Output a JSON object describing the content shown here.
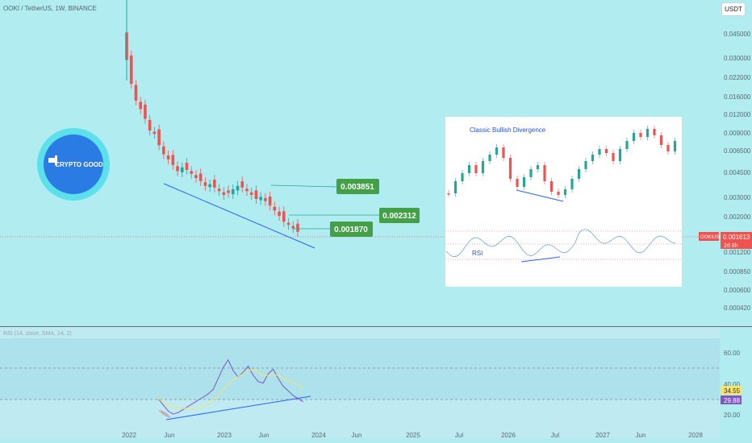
{
  "header": {
    "symbol_title": "OOKI / TetherUS, 1W, BINANCE",
    "currency_button": "USDT"
  },
  "logo": {
    "text": "CRYPTO GOOD"
  },
  "price_axis": {
    "labels": [
      "0.045000",
      "0.030000",
      "0.022000",
      "0.016000",
      "0.012000",
      "0.009000",
      "0.006500",
      "0.004500",
      "0.003000",
      "0.002000",
      "0.001200",
      "0.000850",
      "0.000600",
      "0.000420"
    ],
    "last_price_tag": {
      "symbol": "OOKIUSDT",
      "value": "0.001613",
      "countdown": "2d 8h",
      "color": "#ef5350"
    }
  },
  "time_axis": {
    "labels": [
      "2022",
      "Jun",
      "2023",
      "Jun",
      "2024",
      "Jun",
      "2025",
      "Jul",
      "2026",
      "Jul",
      "2027",
      "Jun",
      "2028"
    ]
  },
  "annotations": {
    "targets": [
      {
        "label": "0.003851",
        "color": "#43a047"
      },
      {
        "label": "0.002312",
        "color": "#43a047"
      },
      {
        "label": "0.001870",
        "color": "#43a047"
      }
    ]
  },
  "inset": {
    "title": "Classic Bullish Divergence",
    "rsi_label": "RSI"
  },
  "rsi_pane": {
    "title": "RSI (14, close, SMA, 14, 2)",
    "axis_labels": [
      "60.00",
      "40.00",
      "20.00"
    ],
    "sma_value": {
      "text": "34.55",
      "color": "#f5e66a"
    },
    "rsi_value": {
      "text": "29.88",
      "color": "#7e57c2"
    }
  },
  "colors": {
    "background": "#b0ecf0",
    "candle_up": "#26a69a",
    "candle_down": "#ef5350",
    "trendline": "#2962ff",
    "rsi_line": "#7e57c2",
    "rsi_sma": "#f5e66a"
  },
  "chart_data": {
    "type": "candlestick",
    "symbol": "OOKIUSDT",
    "interval": "1W",
    "scale": "log",
    "series": [
      {
        "name": "OOKIUSDT",
        "values": [
          0.03,
          0.02,
          0.015,
          0.013,
          0.011,
          0.009,
          0.0085,
          0.007,
          0.006,
          0.0055,
          0.005,
          0.0045,
          0.0048,
          0.0046,
          0.0043,
          0.004,
          0.0038,
          0.0035,
          0.0036,
          0.0034,
          0.0032,
          0.003,
          0.0031,
          0.0033,
          0.0035,
          0.0034,
          0.0032,
          0.003,
          0.0028,
          0.0029,
          0.0027,
          0.0025,
          0.0023,
          0.0021,
          0.0019,
          0.0018,
          0.0017,
          0.0016
        ]
      }
    ],
    "rsi_series": [
      32,
      28,
      24,
      22,
      23,
      25,
      27,
      29,
      31,
      33,
      35,
      38,
      45,
      52,
      57,
      50,
      46,
      49,
      53,
      47,
      43,
      42,
      48,
      51,
      45,
      40,
      37,
      34,
      32,
      30
    ]
  }
}
